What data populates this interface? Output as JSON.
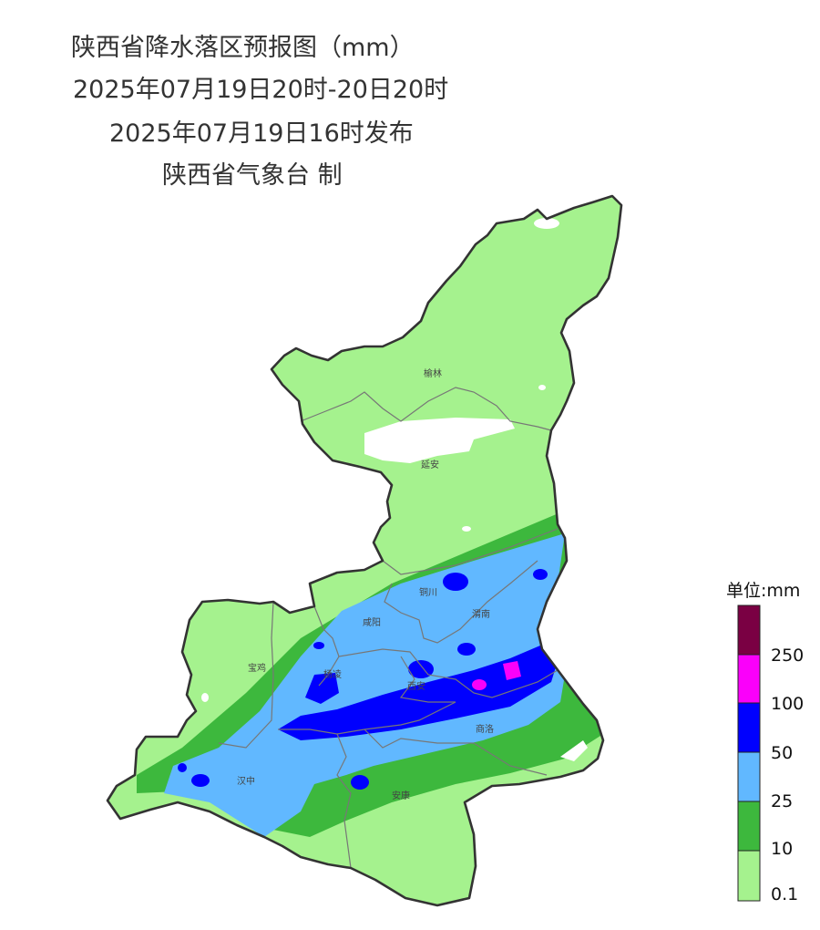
{
  "title": {
    "line1": "陕西省降水落区预报图（mm）",
    "line2": "2025年07月19日20时-20日20时",
    "line3": "2025年07月19日16时发布",
    "line4": "陕西省气象台 制"
  },
  "cities": {
    "yulin": "榆林",
    "yanan": "延安",
    "tongchuan": "铜川",
    "weinan": "渭南",
    "xianyang": "咸阳",
    "baoji": "宝鸡",
    "yangling": "杨凌",
    "xian": "西安",
    "shangluo": "商洛",
    "hanzhong": "汉中",
    "ankang": "安康"
  },
  "legend": {
    "title": "单位:mm",
    "levels": [
      {
        "label": "250",
        "color": "#7a0043"
      },
      {
        "label": "100",
        "color": "#fa00fa"
      },
      {
        "label": "50",
        "color": "#0000fe"
      },
      {
        "label": "25",
        "color": "#61b8ff"
      },
      {
        "label": "10",
        "color": "#3db83d"
      },
      {
        "label": "0.1",
        "color": "#a5f28e"
      }
    ]
  },
  "colors": {
    "light_rain": "#a5f28e",
    "moderate_rain": "#3db83d",
    "heavy_rain": "#61b8ff",
    "rainstorm": "#0000fe",
    "heavy_rainstorm": "#fa00fa",
    "extreme_rainstorm": "#7a0043",
    "province_border": "#333333",
    "city_border": "#777777"
  }
}
